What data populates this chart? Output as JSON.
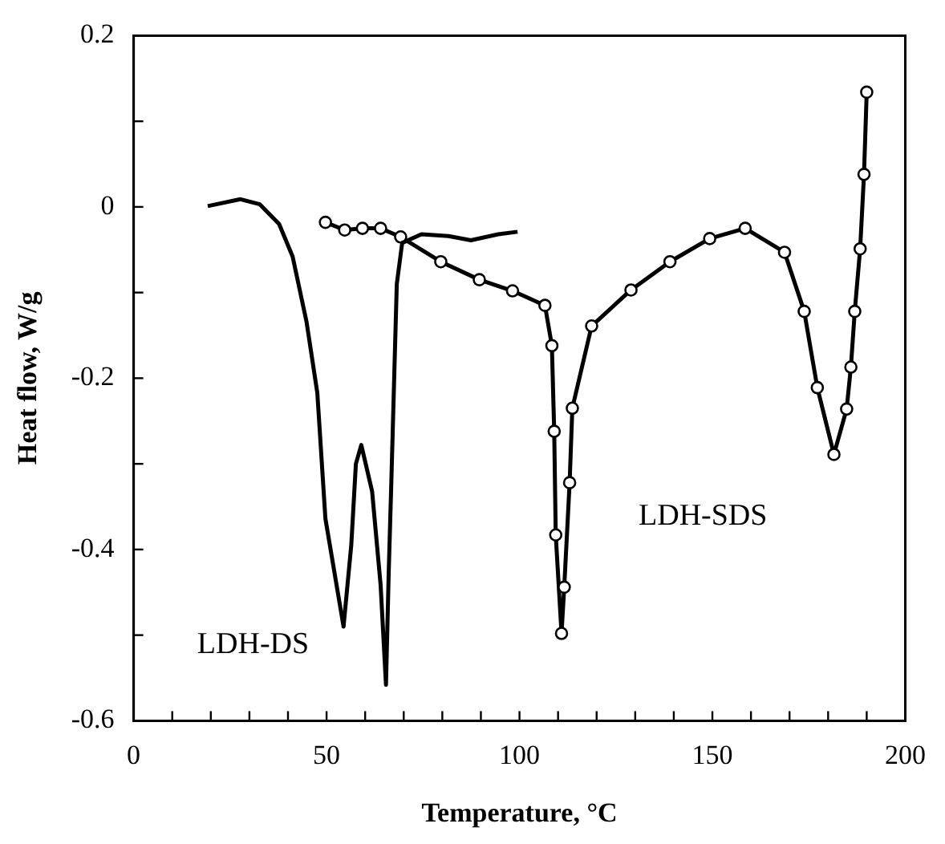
{
  "chart_data": {
    "type": "line",
    "xlabel": "Temperature, °C",
    "ylabel": "Heat flow, W/g",
    "xlim": [
      0,
      200
    ],
    "ylim": [
      -0.6,
      0.2
    ],
    "xticks": [
      0,
      {
        "value": 10,
        "label": null
      },
      {
        "value": 20,
        "label": null
      },
      {
        "value": 30,
        "label": null
      },
      {
        "value": 40,
        "label": null
      },
      50,
      {
        "value": 60,
        "label": null
      },
      {
        "value": 70,
        "label": null
      },
      {
        "value": 80,
        "label": null
      },
      {
        "value": 90,
        "label": null
      },
      100,
      {
        "value": 110,
        "label": null
      },
      {
        "value": 120,
        "label": null
      },
      {
        "value": 130,
        "label": null
      },
      {
        "value": 140,
        "label": null
      },
      150,
      {
        "value": 160,
        "label": null
      },
      {
        "value": 170,
        "label": null
      },
      {
        "value": 180,
        "label": null
      },
      {
        "value": 190,
        "label": null
      },
      200
    ],
    "yticks": [
      -0.6,
      {
        "value": -0.5,
        "label": null
      },
      -0.4,
      {
        "value": -0.3,
        "label": null
      },
      -0.2,
      {
        "value": -0.1,
        "label": null
      },
      0,
      {
        "value": 0.1,
        "label": null
      },
      0.2
    ],
    "grid": false,
    "legend": false,
    "line_style": "solid",
    "series": [
      {
        "name": "LDH-DS",
        "color": "#000000",
        "marker": "none",
        "x": [
          19.2,
          27.7,
          32.7,
          37.7,
          41.2,
          44.8,
          47.6,
          49.7,
          54.4,
          56.4,
          57.6,
          59.0,
          61.8,
          64.0,
          65.4,
          66.1,
          66.8,
          67.5,
          68.2,
          69.6,
          74.6,
          81.6,
          87.4,
          94.5,
          99.5
        ],
        "values": [
          0.001,
          0.009,
          0.003,
          -0.02,
          -0.058,
          -0.134,
          -0.217,
          -0.364,
          -0.49,
          -0.395,
          -0.3,
          -0.278,
          -0.332,
          -0.441,
          -0.558,
          -0.428,
          -0.319,
          -0.204,
          -0.09,
          -0.042,
          -0.032,
          -0.034,
          -0.039,
          -0.032,
          -0.029
        ]
      },
      {
        "name": "LDH-SDS",
        "color": "#000000",
        "marker": "circle",
        "x": [
          49.7,
          54.7,
          59.3,
          64.0,
          69.2,
          79.6,
          89.6,
          98.2,
          106.6,
          108.4,
          109.0,
          109.4,
          110.9,
          111.6,
          113.0,
          113.7,
          118.7,
          128.9,
          139.0,
          149.3,
          158.5,
          168.7,
          173.8,
          177.2,
          181.5,
          184.8,
          185.9,
          186.9,
          188.3,
          189.3,
          190.0
        ],
        "values": [
          -0.018,
          -0.027,
          -0.025,
          -0.025,
          -0.035,
          -0.064,
          -0.085,
          -0.098,
          -0.115,
          -0.162,
          -0.262,
          -0.383,
          -0.498,
          -0.444,
          -0.322,
          -0.235,
          -0.139,
          -0.097,
          -0.064,
          -0.037,
          -0.025,
          -0.053,
          -0.122,
          -0.211,
          -0.289,
          -0.236,
          -0.187,
          -0.122,
          -0.049,
          0.038,
          0.134
        ]
      }
    ]
  }
}
